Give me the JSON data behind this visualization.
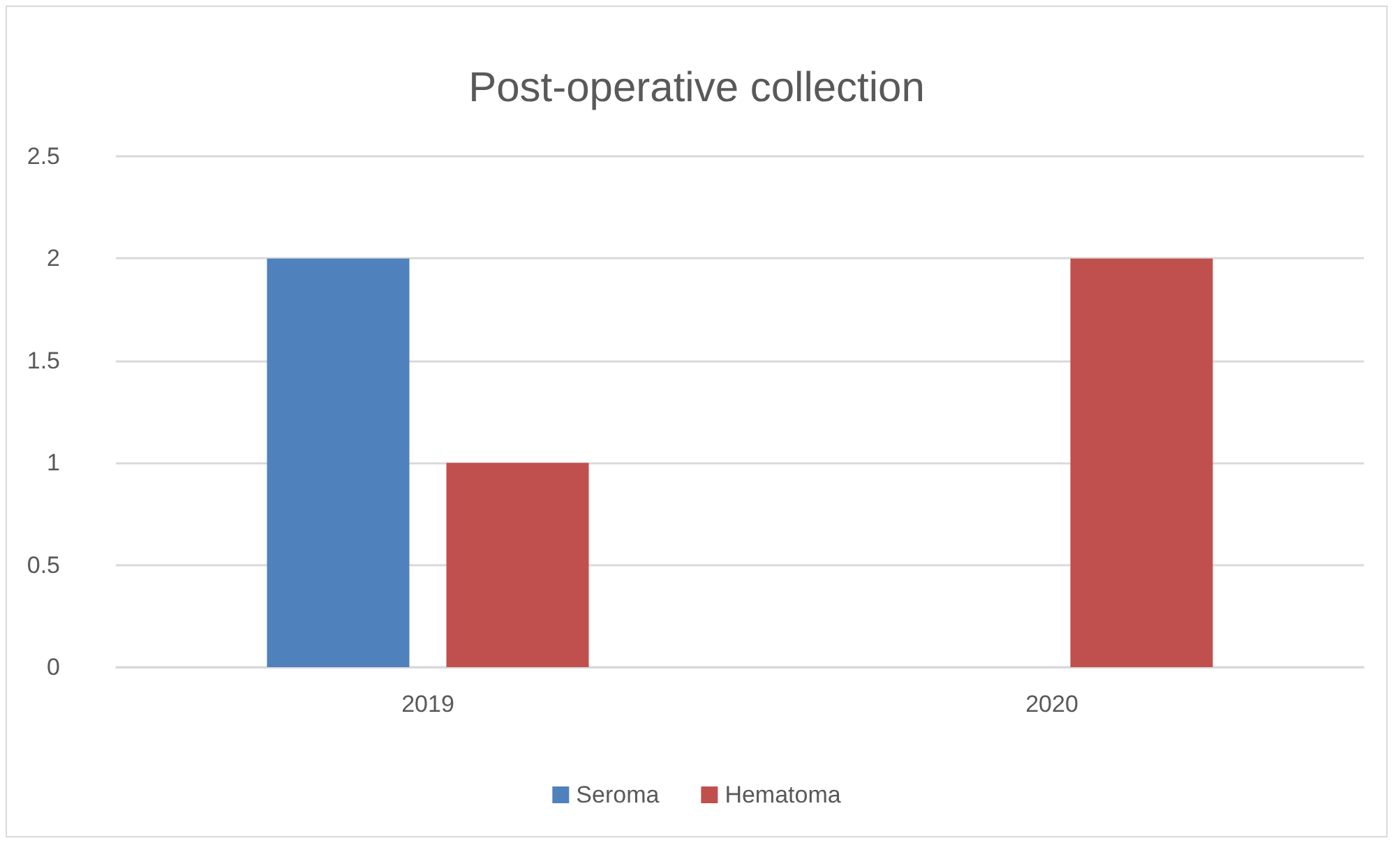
{
  "chart_data": {
    "type": "bar",
    "title": "Post-operative collection",
    "categories": [
      "2019",
      "2020"
    ],
    "series": [
      {
        "name": "Seroma",
        "color": "#4f81bd",
        "values": [
          2,
          0
        ]
      },
      {
        "name": "Hematoma",
        "color": "#c0504d",
        "values": [
          1,
          2
        ]
      }
    ],
    "ylim": [
      0,
      2.5
    ],
    "yticks": [
      0,
      0.5,
      1,
      1.5,
      2,
      2.5
    ],
    "grid": "y",
    "legend": "bottom"
  }
}
